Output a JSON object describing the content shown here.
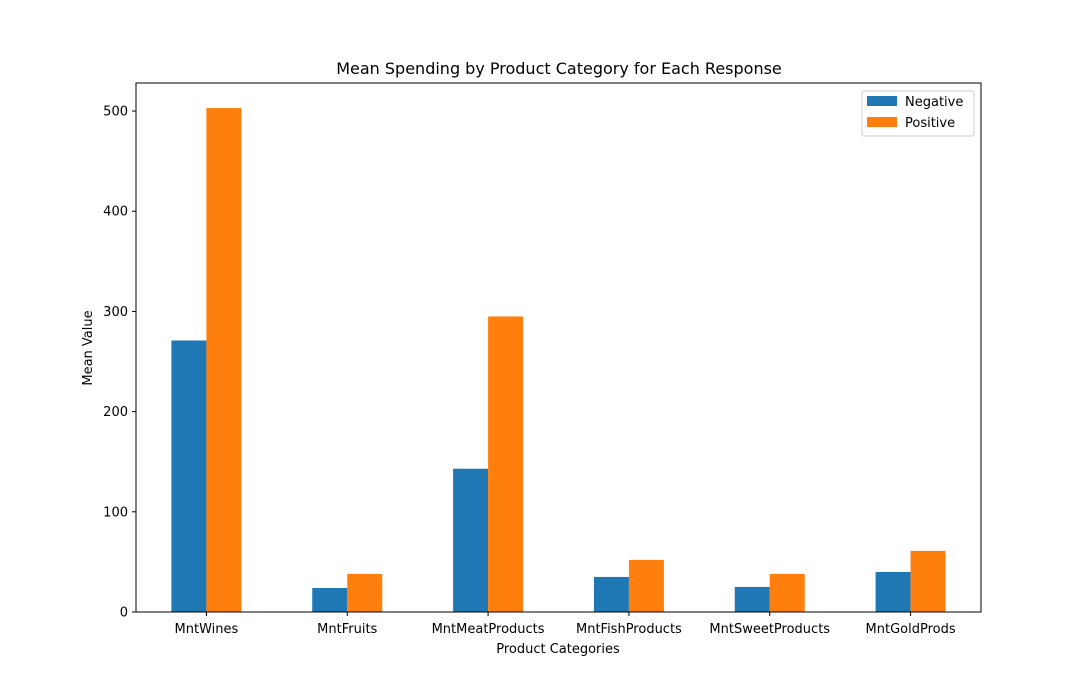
{
  "chart_data": {
    "type": "bar",
    "title": "Mean Spending by Product Category for Each Response",
    "xlabel": "Product Categories",
    "ylabel": "Mean Value",
    "categories": [
      "MntWines",
      "MntFruits",
      "MntMeatProducts",
      "MntFishProducts",
      "MntSweetProducts",
      "MntGoldProds"
    ],
    "series": [
      {
        "name": "Negative",
        "color": "#1f77b4",
        "values": [
          271,
          24,
          143,
          35,
          25,
          40
        ]
      },
      {
        "name": "Positive",
        "color": "#ff7f0e",
        "values": [
          503,
          38,
          295,
          52,
          38,
          61
        ]
      }
    ],
    "ylim": [
      0,
      528
    ],
    "yticks": [
      0,
      100,
      200,
      300,
      400,
      500
    ],
    "grid": false,
    "legend_position": "top-right"
  }
}
